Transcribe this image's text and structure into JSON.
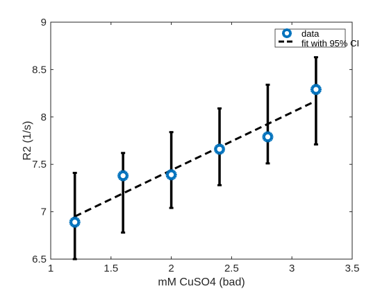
{
  "chart_data": {
    "type": "scatter",
    "xlabel": "mM CuSO4 (bad)",
    "ylabel": "R2 (1/s)",
    "xlim": [
      1,
      3.5
    ],
    "ylim": [
      6.5,
      9
    ],
    "xticks": [
      1,
      1.5,
      2,
      2.5,
      3,
      3.5
    ],
    "yticks": [
      6.5,
      7,
      7.5,
      8,
      8.5,
      9
    ],
    "xtick_labels": [
      "1",
      "1.5",
      "2",
      "2.5",
      "3",
      "3.5"
    ],
    "ytick_labels": [
      "6.5",
      "7",
      "7.5",
      "8",
      "8.5",
      "9"
    ],
    "grid": false,
    "legend_position": "top-right",
    "series": [
      {
        "name": "data",
        "kind": "points",
        "marker": "star",
        "color": "#0072BD",
        "x": [
          1.2,
          1.6,
          2.0,
          2.4,
          2.8,
          3.2
        ],
        "y": [
          6.89,
          7.38,
          7.39,
          7.66,
          7.79,
          8.29
        ]
      },
      {
        "name": "fit with 95% CI",
        "kind": "line",
        "style": "dashed",
        "color": "#000000",
        "x": [
          1.2,
          3.2
        ],
        "y": [
          6.95,
          8.17
        ],
        "ci_lower": [
          6.5,
          6.78,
          7.04,
          7.28,
          7.51,
          7.71
        ],
        "ci_upper": [
          7.41,
          7.62,
          7.84,
          8.09,
          8.34,
          8.63
        ]
      }
    ]
  }
}
